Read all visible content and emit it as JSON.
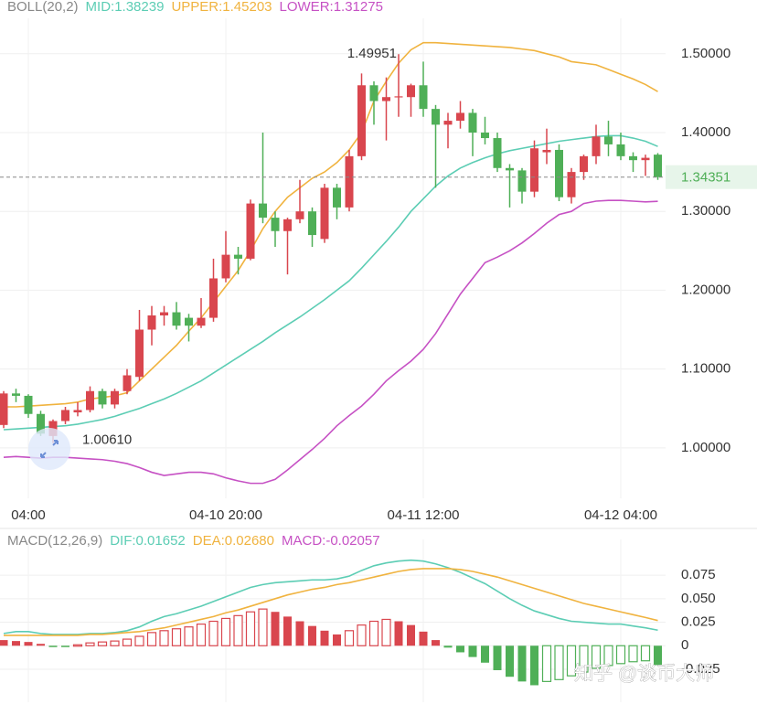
{
  "chart_data": [
    {
      "type": "candlestick",
      "title": "BOLL(20,2)",
      "categories": [
        null,
        null,
        "04:00",
        null,
        null,
        null,
        null,
        null,
        null,
        null,
        null,
        null,
        null,
        null,
        null,
        null,
        null,
        null,
        "04-10 20:00",
        null,
        null,
        null,
        null,
        null,
        null,
        null,
        null,
        null,
        null,
        null,
        null,
        null,
        null,
        null,
        "04-11 12:00",
        null,
        null,
        null,
        null,
        null,
        null,
        null,
        null,
        null,
        null,
        null,
        null,
        null,
        null,
        null,
        "04-12 04:00",
        null,
        null,
        null
      ],
      "open": [
        1.029,
        1.069,
        1.066,
        1.043,
        1.015,
        1.034,
        1.045,
        1.048,
        1.072,
        1.055,
        1.072,
        1.09,
        1.15,
        1.168,
        1.172,
        1.165,
        1.155,
        1.165,
        1.215,
        1.245,
        1.24,
        1.31,
        1.292,
        1.275,
        1.29,
        1.3,
        1.265,
        1.33,
        1.305,
        1.37,
        1.46,
        1.44,
        1.445,
        1.445,
        1.46,
        1.43,
        1.41,
        1.415,
        1.425,
        1.4,
        1.393,
        1.355,
        1.352,
        1.325,
        1.375,
        1.378,
        1.318,
        1.35,
        1.37,
        1.395,
        1.385,
        1.37,
        1.365,
        1.372
      ],
      "high": [
        1.072,
        1.075,
        1.068,
        1.047,
        1.036,
        1.052,
        1.058,
        1.078,
        1.075,
        1.075,
        1.1,
        1.175,
        1.18,
        1.18,
        1.185,
        1.17,
        1.19,
        1.24,
        1.275,
        1.255,
        1.315,
        1.4,
        1.3,
        1.292,
        1.34,
        1.305,
        1.335,
        1.335,
        1.378,
        1.475,
        1.465,
        1.47,
        1.49951,
        1.462,
        1.49,
        1.435,
        1.425,
        1.44,
        1.43,
        1.42,
        1.4,
        1.36,
        1.355,
        1.39,
        1.405,
        1.385,
        1.355,
        1.372,
        1.41,
        1.415,
        1.4,
        1.375,
        1.372,
        1.374
      ],
      "low": [
        1.025,
        1.058,
        1.038,
        1.015,
        1.0061,
        1.03,
        1.04,
        1.045,
        1.05,
        1.05,
        1.068,
        1.085,
        1.13,
        1.155,
        1.15,
        1.135,
        1.152,
        1.16,
        1.21,
        1.22,
        1.238,
        1.285,
        1.255,
        1.22,
        1.285,
        1.255,
        1.26,
        1.29,
        1.3,
        1.365,
        1.41,
        1.39,
        1.42,
        1.42,
        1.42,
        1.33,
        1.38,
        1.405,
        1.37,
        1.385,
        1.35,
        1.305,
        1.31,
        1.318,
        1.36,
        1.313,
        1.31,
        1.34,
        1.36,
        1.37,
        1.365,
        1.35,
        1.345,
        1.34
      ],
      "close": [
        1.069,
        1.066,
        1.043,
        1.018,
        1.034,
        1.048,
        1.048,
        1.072,
        1.055,
        1.072,
        1.092,
        1.15,
        1.168,
        1.172,
        1.155,
        1.155,
        1.165,
        1.215,
        1.245,
        1.24,
        1.31,
        1.292,
        1.275,
        1.29,
        1.3,
        1.27,
        1.33,
        1.305,
        1.37,
        1.46,
        1.44,
        1.445,
        1.446,
        1.46,
        1.43,
        1.41,
        1.415,
        1.425,
        1.4,
        1.393,
        1.355,
        1.352,
        1.325,
        1.38,
        1.378,
        1.318,
        1.35,
        1.37,
        1.395,
        1.385,
        1.37,
        1.365,
        1.368,
        1.34351
      ],
      "up_color": "#d9464e",
      "down_color": "#4faf57",
      "series": [
        {
          "name": "MID:1.38239",
          "color": "#5ccdb4",
          "values": [
            1.023,
            1.024,
            1.025,
            1.026,
            1.027,
            1.028,
            1.03,
            1.033,
            1.036,
            1.04,
            1.045,
            1.05,
            1.056,
            1.062,
            1.069,
            1.077,
            1.085,
            1.095,
            1.105,
            1.115,
            1.125,
            1.135,
            1.146,
            1.156,
            1.166,
            1.177,
            1.188,
            1.2,
            1.212,
            1.228,
            1.245,
            1.262,
            1.28,
            1.3,
            1.316,
            1.332,
            1.345,
            1.355,
            1.362,
            1.368,
            1.373,
            1.377,
            1.38,
            1.383,
            1.386,
            1.389,
            1.391,
            1.393,
            1.395,
            1.396,
            1.396,
            1.393,
            1.389,
            1.38239
          ]
        },
        {
          "name": "UPPER:1.45203",
          "color": "#f0b33f",
          "values": [
            1.052,
            1.052,
            1.053,
            1.054,
            1.055,
            1.056,
            1.058,
            1.062,
            1.064,
            1.066,
            1.07,
            1.085,
            1.1,
            1.115,
            1.13,
            1.148,
            1.165,
            1.185,
            1.205,
            1.225,
            1.25,
            1.278,
            1.3,
            1.318,
            1.33,
            1.342,
            1.35,
            1.362,
            1.378,
            1.4,
            1.44,
            1.465,
            1.488,
            1.505,
            1.514,
            1.514,
            1.513,
            1.512,
            1.511,
            1.51,
            1.509,
            1.508,
            1.506,
            1.504,
            1.5,
            1.496,
            1.49,
            1.488,
            1.486,
            1.48,
            1.474,
            1.468,
            1.461,
            1.45203
          ]
        },
        {
          "name": "LOWER:1.31275",
          "color": "#c651c4",
          "values": [
            0.988,
            0.989,
            0.988,
            0.987,
            0.988,
            0.988,
            0.987,
            0.986,
            0.985,
            0.983,
            0.98,
            0.975,
            0.969,
            0.965,
            0.967,
            0.969,
            0.969,
            0.967,
            0.962,
            0.958,
            0.955,
            0.955,
            0.96,
            0.972,
            0.985,
            0.998,
            1.012,
            1.028,
            1.041,
            1.053,
            1.068,
            1.085,
            1.098,
            1.11,
            1.125,
            1.145,
            1.17,
            1.195,
            1.215,
            1.235,
            1.242,
            1.25,
            1.26,
            1.272,
            1.285,
            1.296,
            1.3,
            1.31,
            1.313,
            1.314,
            1.314,
            1.313,
            1.312,
            1.31275
          ]
        }
      ],
      "annotations": [
        {
          "value": 1.49951,
          "label": "1.49951"
        },
        {
          "value": 1.0061,
          "label": "1.00610"
        }
      ],
      "last_price": 1.34351,
      "ylim": [
        0.936,
        1.545
      ],
      "yticks": [
        {
          "value": 1.0,
          "label": "1.00000"
        },
        {
          "value": 1.1,
          "label": "1.10000"
        },
        {
          "value": 1.2,
          "label": "1.20000"
        },
        {
          "value": 1.3,
          "label": "1.30000"
        },
        {
          "value": 1.4,
          "label": "1.40000"
        },
        {
          "value": 1.5,
          "label": "1.50000"
        }
      ],
      "grid": true
    },
    {
      "type": "macd",
      "title": "MACD(12,26,9)",
      "histogram": {
        "name": "MACD:-0.02057",
        "color": "#c651c4",
        "values": [
          0.006,
          0.005,
          0.004,
          0.002,
          -0.001,
          -0.001,
          0.001,
          0.003,
          0.004,
          0.005,
          0.007,
          0.01,
          0.014,
          0.016,
          0.018,
          0.02,
          0.023,
          0.026,
          0.029,
          0.032,
          0.036,
          0.039,
          0.036,
          0.031,
          0.026,
          0.021,
          0.016,
          0.012,
          0.016,
          0.022,
          0.026,
          0.028,
          0.026,
          0.022,
          0.015,
          0.006,
          -0.002,
          -0.007,
          -0.012,
          -0.018,
          -0.026,
          -0.033,
          -0.038,
          -0.042,
          -0.038,
          -0.036,
          -0.032,
          -0.028,
          -0.024,
          -0.021,
          -0.019,
          -0.017,
          -0.016,
          -0.02057
        ]
      },
      "up_color": "#d9464e",
      "down_color": "#4faf57",
      "series": [
        {
          "name": "DIF:0.01652",
          "color": "#5ccdb4",
          "values": [
            0.013,
            0.015,
            0.015,
            0.013,
            0.012,
            0.012,
            0.012,
            0.013,
            0.013,
            0.014,
            0.016,
            0.02,
            0.026,
            0.031,
            0.034,
            0.038,
            0.042,
            0.047,
            0.052,
            0.057,
            0.062,
            0.065,
            0.067,
            0.068,
            0.069,
            0.07,
            0.07,
            0.071,
            0.074,
            0.08,
            0.085,
            0.088,
            0.09,
            0.091,
            0.09,
            0.087,
            0.083,
            0.078,
            0.072,
            0.066,
            0.058,
            0.05,
            0.043,
            0.037,
            0.033,
            0.029,
            0.026,
            0.025,
            0.024,
            0.023,
            0.023,
            0.021,
            0.019,
            0.01652
          ]
        },
        {
          "name": "DEA:0.02680",
          "color": "#f0b33f",
          "values": [
            0.011,
            0.011,
            0.011,
            0.011,
            0.011,
            0.011,
            0.011,
            0.012,
            0.012,
            0.013,
            0.014,
            0.015,
            0.017,
            0.019,
            0.022,
            0.025,
            0.028,
            0.031,
            0.035,
            0.038,
            0.042,
            0.046,
            0.05,
            0.054,
            0.057,
            0.06,
            0.062,
            0.065,
            0.067,
            0.07,
            0.073,
            0.076,
            0.079,
            0.081,
            0.082,
            0.082,
            0.082,
            0.081,
            0.079,
            0.076,
            0.073,
            0.069,
            0.065,
            0.061,
            0.057,
            0.053,
            0.049,
            0.045,
            0.042,
            0.039,
            0.036,
            0.033,
            0.03,
            0.0268
          ]
        }
      ],
      "ylim": [
        -0.06,
        0.113
      ],
      "yticks": [
        -0.025,
        0,
        0.025,
        {
          "value": 0.05,
          "label": "0.050"
        },
        0.075
      ],
      "grid": true
    }
  ],
  "watermark": "知乎 @谈币大师"
}
